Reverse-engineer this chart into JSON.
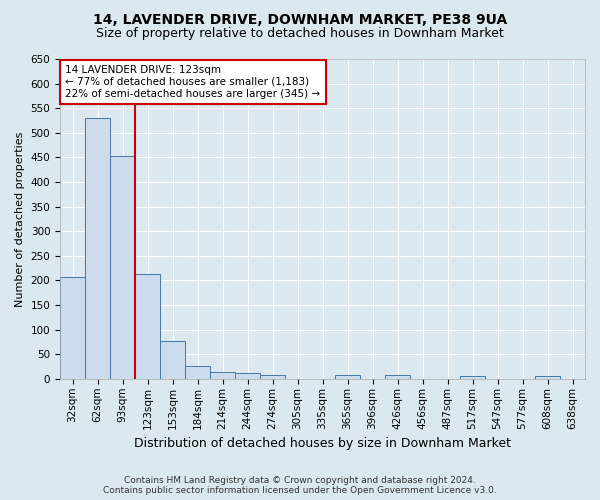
{
  "title1": "14, LAVENDER DRIVE, DOWNHAM MARKET, PE38 9UA",
  "title2": "Size of property relative to detached houses in Downham Market",
  "xlabel": "Distribution of detached houses by size in Downham Market",
  "ylabel": "Number of detached properties",
  "footer1": "Contains HM Land Registry data © Crown copyright and database right 2024.",
  "footer2": "Contains public sector information licensed under the Open Government Licence v3.0.",
  "categories": [
    "32sqm",
    "62sqm",
    "93sqm",
    "123sqm",
    "153sqm",
    "184sqm",
    "214sqm",
    "244sqm",
    "274sqm",
    "305sqm",
    "335sqm",
    "365sqm",
    "396sqm",
    "426sqm",
    "456sqm",
    "487sqm",
    "517sqm",
    "547sqm",
    "577sqm",
    "608sqm",
    "638sqm"
  ],
  "values": [
    207,
    530,
    452,
    213,
    77,
    26,
    15,
    13,
    8,
    0,
    0,
    7,
    0,
    7,
    0,
    0,
    5,
    0,
    0,
    5,
    0
  ],
  "bar_color": "#ccdcec",
  "bar_edge_color": "#4477aa",
  "highlight_x": "123sqm",
  "highlight_color": "#cc0000",
  "annotation_title": "14 LAVENDER DRIVE: 123sqm",
  "annotation_line1": "← 77% of detached houses are smaller (1,183)",
  "annotation_line2": "22% of semi-detached houses are larger (345) →",
  "annotation_box_color": "#ffffff",
  "annotation_box_edge": "#cc0000",
  "ylim": [
    0,
    650
  ],
  "yticks": [
    0,
    50,
    100,
    150,
    200,
    250,
    300,
    350,
    400,
    450,
    500,
    550,
    600,
    650
  ],
  "bg_color": "#dce8f0",
  "plot_bg_color": "#dce8f0",
  "grid_color": "#ffffff",
  "title1_fontsize": 10,
  "title2_fontsize": 9,
  "xlabel_fontsize": 9,
  "ylabel_fontsize": 8,
  "tick_fontsize": 7.5,
  "annotation_fontsize": 7.5,
  "footer_fontsize": 6.5
}
